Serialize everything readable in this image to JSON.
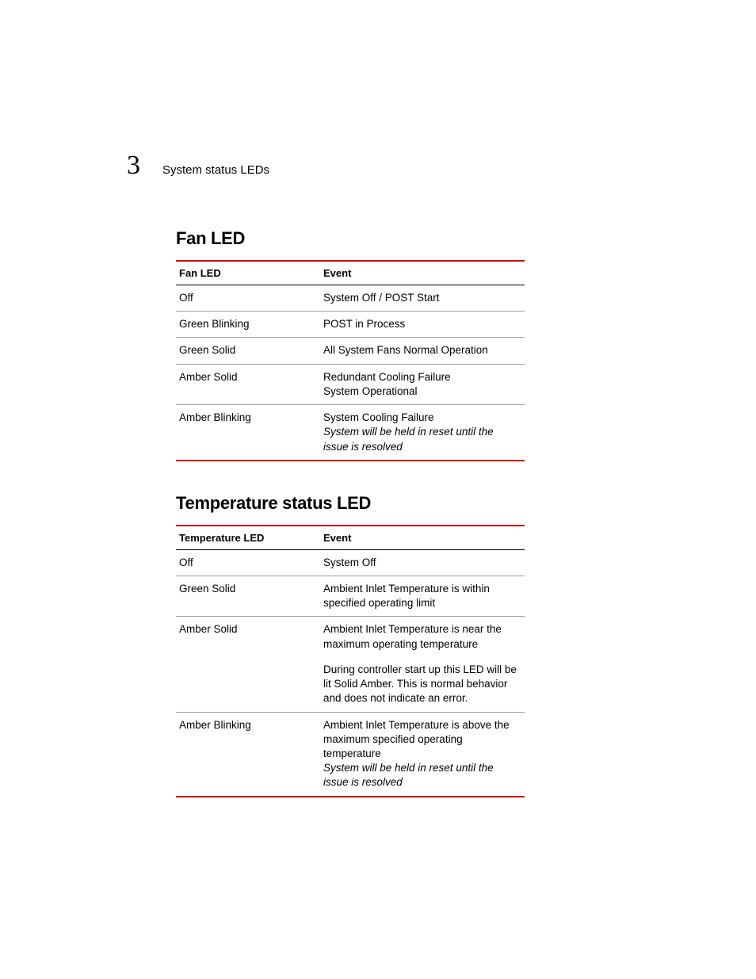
{
  "header": {
    "chapter_number": "3",
    "title": "System status LEDs"
  },
  "sections": [
    {
      "title": "Fan LED",
      "table": {
        "columns": [
          "Fan LED",
          "Event"
        ],
        "rows": [
          {
            "state": "Off",
            "segments": [
              {
                "text": "System Off / POST Start",
                "italic": false
              }
            ]
          },
          {
            "state": "Green Blinking",
            "segments": [
              {
                "text": "POST in Process",
                "italic": false
              }
            ]
          },
          {
            "state": "Green Solid",
            "segments": [
              {
                "text": "All System Fans Normal Operation",
                "italic": false
              }
            ]
          },
          {
            "state": "Amber Solid",
            "segments": [
              {
                "text": "Redundant Cooling Failure",
                "italic": false
              },
              {
                "text": "System Operational",
                "italic": false
              }
            ]
          },
          {
            "state": "Amber Blinking",
            "segments": [
              {
                "text": "System Cooling Failure",
                "italic": false
              },
              {
                "text": "System will be held in reset until the issue is resolved",
                "italic": true
              }
            ]
          }
        ]
      }
    },
    {
      "title": "Temperature status LED",
      "table": {
        "columns": [
          "Temperature LED",
          "Event"
        ],
        "rows": [
          {
            "state": "Off",
            "segments": [
              {
                "text": "System Off",
                "italic": false
              }
            ]
          },
          {
            "state": "Green Solid",
            "segments": [
              {
                "text": "Ambient Inlet Temperature is within specified operating limit",
                "italic": false
              }
            ]
          },
          {
            "state": "Amber Solid",
            "segments": [
              {
                "text": "Ambient Inlet Temperature is near the maximum operating temperature",
                "italic": false
              },
              {
                "gap": true
              },
              {
                "text": "During controller start up this LED will be lit Solid Amber. This is normal behavior and does not indicate an error.",
                "italic": false
              }
            ]
          },
          {
            "state": "Amber Blinking",
            "segments": [
              {
                "text": "Ambient Inlet Temperature is above the maximum specified operating temperature",
                "italic": false
              },
              {
                "text": "System will be held in reset until the issue is resolved",
                "italic": true
              }
            ]
          }
        ]
      }
    }
  ],
  "style": {
    "accent_color": "#cc0000",
    "row_border_color": "#a0a0a0",
    "text_color": "#000000",
    "background_color": "#ffffff",
    "body_fontsize_pt": 10,
    "title_fontsize_pt": 17,
    "chapter_fontsize_pt": 26
  }
}
